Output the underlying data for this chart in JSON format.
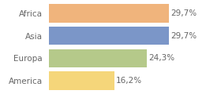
{
  "categories": [
    "Africa",
    "Asia",
    "Europa",
    "America"
  ],
  "values": [
    29.7,
    29.7,
    24.3,
    16.2
  ],
  "labels": [
    "29,7%",
    "29,7%",
    "24,3%",
    "16,2%"
  ],
  "bar_colors": [
    "#f0b47c",
    "#7b96c8",
    "#b5c98a",
    "#f5d67a"
  ],
  "background_color": "#ffffff",
  "xlim": [
    0,
    36
  ],
  "bar_height": 0.82,
  "label_fontsize": 7.5,
  "tick_fontsize": 7.5,
  "label_color": "#666666",
  "tick_color": "#666666"
}
